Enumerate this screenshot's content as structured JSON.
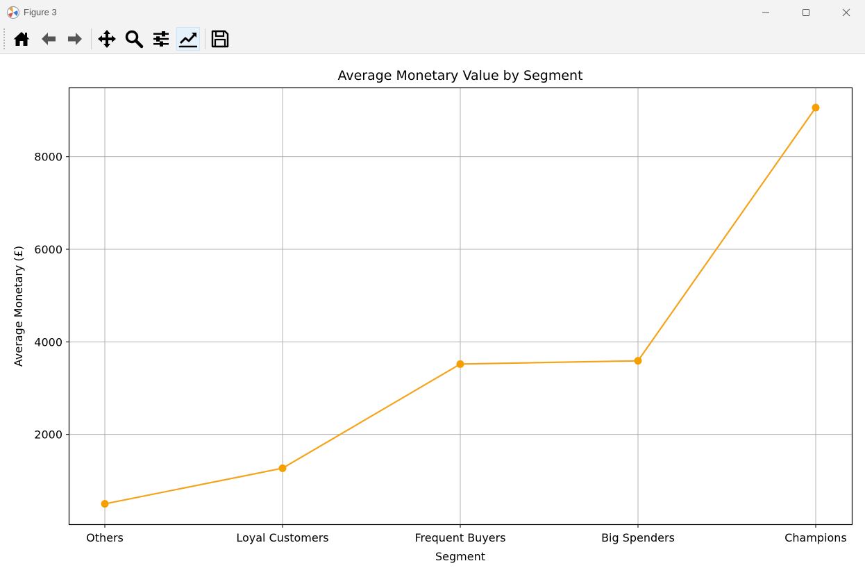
{
  "window": {
    "title": "Figure 3",
    "controls": [
      "minimize-icon",
      "maximize-icon",
      "close-icon"
    ]
  },
  "toolbar": {
    "tools": [
      {
        "name": "home-icon",
        "active": false
      },
      {
        "name": "back-arrow-icon",
        "active": false
      },
      {
        "name": "forward-arrow-icon",
        "active": false
      },
      {
        "name": "pan-icon",
        "active": false
      },
      {
        "name": "zoom-icon",
        "active": false
      },
      {
        "name": "configure-subplots-icon",
        "active": false
      },
      {
        "name": "edit-axis-icon",
        "active": true
      },
      {
        "name": "save-icon",
        "active": false
      }
    ]
  },
  "chart_data": {
    "type": "line",
    "title": "Average Monetary Value by Segment",
    "xlabel": "Segment",
    "ylabel": "Average Monetary (£)",
    "categories": [
      "Others",
      "Loyal Customers",
      "Frequent Buyers",
      "Big Spenders",
      "Champions"
    ],
    "values": [
      500,
      1270,
      3520,
      3590,
      9060
    ],
    "ylim": [
      60,
      9480
    ],
    "yticks": [
      2000,
      4000,
      6000,
      8000
    ],
    "grid": true,
    "marker": "circle",
    "color": "#f5a31a",
    "marker_color": "#f59f00"
  }
}
